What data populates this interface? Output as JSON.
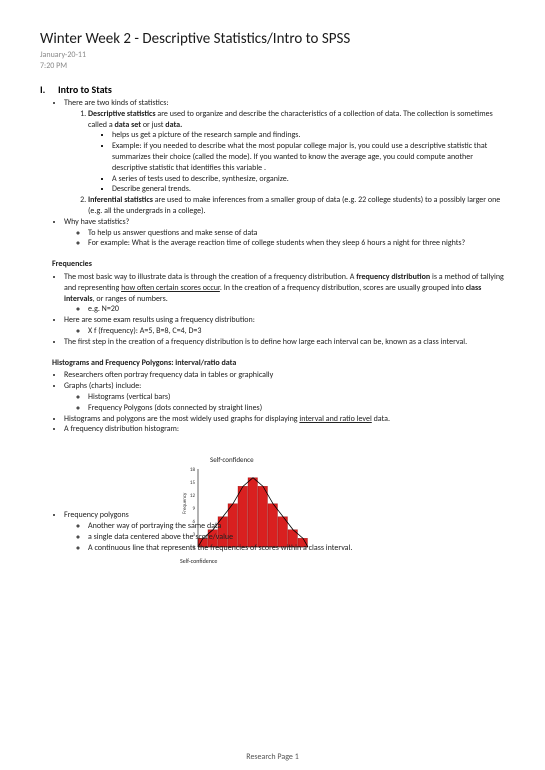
{
  "title": "Winter Week 2 - Descriptive Statistics/Intro to SPSS",
  "date": "January-20-11",
  "time": "7:20 PM",
  "section1": {
    "roman": "I.",
    "title": "Intro to Stats",
    "intro": "There are two kinds of statistics:",
    "item1_bold": "Descriptive statistics",
    "item1_text": " are used to organize and describe the characteristics of a collection of data. The collection is sometimes called a ",
    "item1_bold2": "data set",
    "item1_text2": " or just ",
    "item1_bold3": "data.",
    "item1_a": "helps us get a picture of the research sample and findings.",
    "item1_b": "Example: if you needed to describe what the most popular college major is, you could use a descriptive statistic that summarizes their choice (called the mode). If you wanted to know the average age, you could compute another descriptive statistic that identifies this variable .",
    "item1_c": "A series of tests used to describe, synthesize, organize.",
    "item1_d": "Describe general trends.",
    "item2_bold": "Inferential statistics",
    "item2_text": " are used to make inferences from a smaller group of data (e.g. 22 college students) to a possibly larger one (e.g. all the undergrads in a college).",
    "why": "Why have statistics?",
    "why_a": "To help us answer questions and make sense of data",
    "why_b": "For example: What is the average reaction time of college students when they sleep 6 hours a night for three nights?"
  },
  "freq": {
    "title": "Frequencies",
    "p1a": "The most basic way to illustrate data is through the creation of a frequency distribution. A ",
    "p1b": "frequency distribution",
    "p1c": " is a method of tallying and representing ",
    "p1d": "how often certain scores occur",
    "p1e": ". In the creation of a frequency distribution, scores are usually grouped into ",
    "p1f": "class intervals",
    "p1g": ", or ranges of numbers.",
    "p1_sub": "e.g. N=20",
    "p2": "Here are some exam results using a frequency distribution:",
    "p2_sub": "X f (frequency): A=5, B=8, C=4, D=3",
    "p3": "The first step in the creation of a frequency distribution is to define how large each interval can be, known as a class interval."
  },
  "hist": {
    "title": "Histograms and Frequency Polygons: interval/ratio data",
    "p1": "Researchers often portray frequency data in tables or graphically",
    "p2": "Graphs (charts) include:",
    "p2_a": "Histograms (vertical bars)",
    "p2_b": "Frequency Polygons (dots connected by straight lines)",
    "p3a": "Histograms and polygons are the most widely used graphs for displaying ",
    "p3b": "interval and ratio level",
    "p3c": " data.",
    "p4": "A frequency distribution histogram:"
  },
  "chart": {
    "title": "Self-confidence",
    "bars": [
      2,
      4,
      7,
      10,
      14,
      16,
      14,
      10,
      7,
      4,
      2
    ],
    "bar_color": "#d92020",
    "line_color": "#000000",
    "bg": "#ffffff",
    "ymax": 18,
    "width": 110,
    "height": 80
  },
  "poly": {
    "label": "Frequency polygons",
    "a": "Another way of portraying the same data",
    "b_pre": "a ",
    "b_mid_strike": "single data",
    "b_mid2": " centered above the score/value",
    "c": "A continuous line that represents the frequencies of scores within a class interval.",
    "xlabel": "Self-confidence"
  },
  "footer": "Research Page 1"
}
